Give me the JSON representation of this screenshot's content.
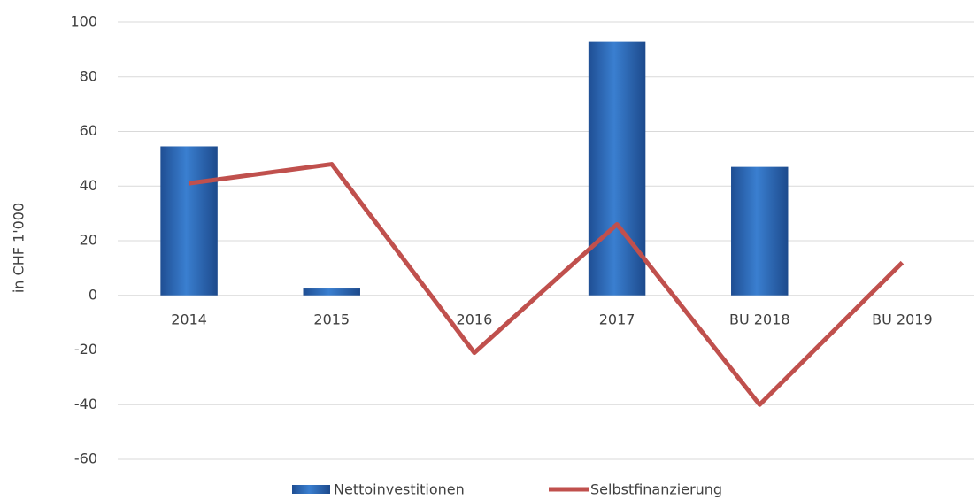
{
  "chart_data": {
    "type": "bar",
    "y_label": "in CHF 1'000",
    "categories": [
      "2014",
      "2015",
      "2016",
      "2017",
      "BU 2018",
      "BU 2019"
    ],
    "series": [
      {
        "name": "Nettoinvestitionen",
        "type": "bar",
        "color": "#2f6ec0",
        "values": [
          54.5,
          2.5,
          0,
          93,
          47,
          0
        ]
      },
      {
        "name": "Selbstfinanzierung",
        "type": "line",
        "color": "#c0504d",
        "values": [
          41,
          48,
          -21,
          26,
          -40,
          12
        ]
      }
    ],
    "ylim": [
      -60,
      100
    ],
    "yticks": [
      -60,
      -40,
      -20,
      0,
      20,
      40,
      60,
      80,
      100
    ],
    "grid": true,
    "legend": "bottom"
  }
}
